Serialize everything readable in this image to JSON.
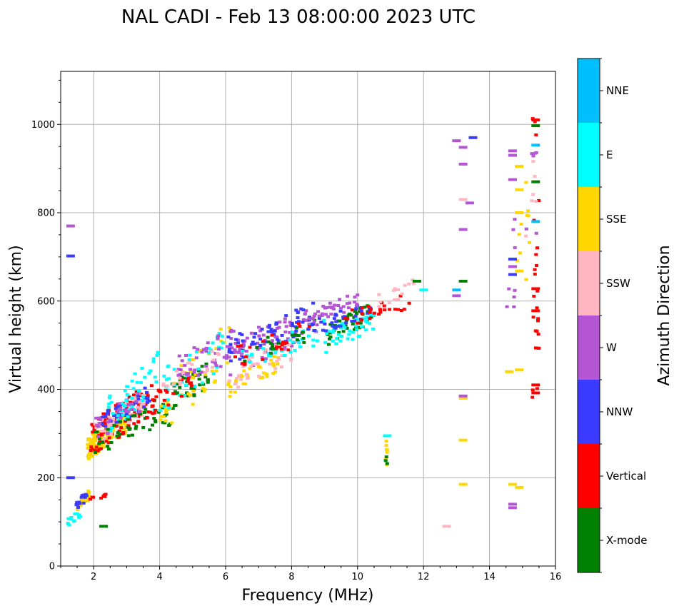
{
  "chart_data": {
    "type": "scatter",
    "title": "NAL CADI - Feb 13 08:00:00 2023 UTC",
    "xlabel": "Frequency (MHz)",
    "ylabel": "Virtual height (km)",
    "xlim": [
      1.0,
      16.0
    ],
    "ylim": [
      0,
      1120
    ],
    "xticks": [
      2,
      4,
      6,
      8,
      10,
      12,
      14,
      16
    ],
    "yticks": [
      0,
      200,
      400,
      600,
      800,
      1000
    ],
    "grid": true,
    "colorbar": {
      "label": "Azimuth Direction",
      "categories": [
        {
          "name": "X-mode",
          "color": "#008000"
        },
        {
          "name": "Vertical",
          "color": "#ff0000"
        },
        {
          "name": "NNW",
          "color": "#3b3bff"
        },
        {
          "name": "W",
          "color": "#b455d4"
        },
        {
          "name": "SSW",
          "color": "#ffb6c1"
        },
        {
          "name": "SSE",
          "color": "#ffd700"
        },
        {
          "name": "E",
          "color": "#00ffff"
        },
        {
          "name": "NNE",
          "color": "#00bfff"
        }
      ]
    },
    "clusters": [
      {
        "cat": "SSE",
        "f": [
          1.5,
          1.9
        ],
        "h": [
          125,
          175
        ],
        "n": 30,
        "seed": 11
      },
      {
        "cat": "NNW",
        "f": [
          1.4,
          1.8
        ],
        "h": [
          120,
          170
        ],
        "n": 16,
        "seed": 12
      },
      {
        "cat": "E",
        "f": [
          1.2,
          1.6
        ],
        "h": [
          88,
          130
        ],
        "n": 14,
        "seed": 13
      },
      {
        "cat": "Vertical",
        "f": [
          1.7,
          2.4
        ],
        "h": [
          145,
          165
        ],
        "n": 8,
        "seed": 14
      },
      {
        "cat": "SSE",
        "f": [
          1.8,
          3.0
        ],
        "h": [
          240,
          350
        ],
        "n": 110,
        "seed": 21
      },
      {
        "cat": "Vertical",
        "f": [
          1.9,
          3.8
        ],
        "h": [
          248,
          420
        ],
        "n": 110,
        "seed": 22
      },
      {
        "cat": "SSW",
        "f": [
          2.0,
          3.6
        ],
        "h": [
          270,
          400
        ],
        "n": 60,
        "seed": 23
      },
      {
        "cat": "NNW",
        "f": [
          2.2,
          3.7
        ],
        "h": [
          300,
          410
        ],
        "n": 40,
        "seed": 24
      },
      {
        "cat": "E",
        "f": [
          2.4,
          4.0
        ],
        "h": [
          290,
          490
        ],
        "n": 45,
        "seed": 25
      },
      {
        "cat": "X-mode",
        "f": [
          2.0,
          4.4
        ],
        "h": [
          250,
          380
        ],
        "n": 40,
        "seed": 26
      },
      {
        "cat": "W",
        "f": [
          2.0,
          3.5
        ],
        "h": [
          280,
          400
        ],
        "n": 25,
        "seed": 27
      },
      {
        "cat": "X-mode",
        "f": [
          3.8,
          5.5
        ],
        "h": [
          320,
          470
        ],
        "n": 45,
        "seed": 31
      },
      {
        "cat": "SSE",
        "f": [
          4.0,
          6.2
        ],
        "h": [
          300,
          560
        ],
        "n": 50,
        "seed": 32
      },
      {
        "cat": "E",
        "f": [
          3.8,
          6.0
        ],
        "h": [
          320,
          560
        ],
        "n": 40,
        "seed": 33
      },
      {
        "cat": "W",
        "f": [
          4.5,
          6.5
        ],
        "h": [
          400,
          560
        ],
        "n": 50,
        "seed": 34
      },
      {
        "cat": "Vertical",
        "f": [
          3.6,
          5.0
        ],
        "h": [
          330,
          450
        ],
        "n": 25,
        "seed": 35
      },
      {
        "cat": "SSW",
        "f": [
          4.0,
          5.8
        ],
        "h": [
          380,
          500
        ],
        "n": 20,
        "seed": 36
      },
      {
        "cat": "W",
        "f": [
          5.8,
          8.8
        ],
        "h": [
          420,
          600
        ],
        "n": 80,
        "seed": 41
      },
      {
        "cat": "NNW",
        "f": [
          6.0,
          8.8
        ],
        "h": [
          450,
          600
        ],
        "n": 60,
        "seed": 42
      },
      {
        "cat": "SSE",
        "f": [
          6.0,
          7.6
        ],
        "h": [
          380,
          480
        ],
        "n": 35,
        "seed": 43
      },
      {
        "cat": "SSW",
        "f": [
          6.0,
          8.0
        ],
        "h": [
          390,
          520
        ],
        "n": 35,
        "seed": 44
      },
      {
        "cat": "E",
        "f": [
          6.5,
          9.0
        ],
        "h": [
          440,
          560
        ],
        "n": 35,
        "seed": 45
      },
      {
        "cat": "Vertical",
        "f": [
          6.2,
          8.6
        ],
        "h": [
          440,
          560
        ],
        "n": 25,
        "seed": 46
      },
      {
        "cat": "X-mode",
        "f": [
          6.5,
          8.7
        ],
        "h": [
          450,
          560
        ],
        "n": 20,
        "seed": 47
      },
      {
        "cat": "X-mode",
        "f": [
          9.0,
          10.5
        ],
        "h": [
          495,
          600
        ],
        "n": 50,
        "seed": 51
      },
      {
        "cat": "E",
        "f": [
          9.0,
          10.6
        ],
        "h": [
          480,
          590
        ],
        "n": 45,
        "seed": 52
      },
      {
        "cat": "NNW",
        "f": [
          8.6,
          10.4
        ],
        "h": [
          520,
          600
        ],
        "n": 35,
        "seed": 53
      },
      {
        "cat": "W",
        "f": [
          8.4,
          10.0
        ],
        "h": [
          540,
          620
        ],
        "n": 35,
        "seed": 54
      },
      {
        "cat": "Vertical",
        "f": [
          9.6,
          11.6
        ],
        "h": [
          540,
          620
        ],
        "n": 25,
        "seed": 55
      },
      {
        "cat": "SSW",
        "f": [
          10.5,
          11.7
        ],
        "h": [
          580,
          650
        ],
        "n": 15,
        "seed": 56
      },
      {
        "cat": "SSE",
        "f": [
          10.85,
          10.9
        ],
        "h": [
          225,
          285
        ],
        "n": 7,
        "seed": 61
      },
      {
        "cat": "X-mode",
        "f": [
          10.85,
          10.9
        ],
        "h": [
          228,
          250
        ],
        "n": 3,
        "seed": 62
      },
      {
        "cat": "Vertical",
        "f": [
          15.3,
          15.5
        ],
        "h": [
          380,
          1015
        ],
        "n": 26,
        "seed": 71
      },
      {
        "cat": "W",
        "f": [
          14.5,
          15.5
        ],
        "h": [
          460,
          1010
        ],
        "n": 14,
        "seed": 72
      },
      {
        "cat": "SSE",
        "f": [
          14.7,
          15.3
        ],
        "h": [
          440,
          960
        ],
        "n": 10,
        "seed": 73
      },
      {
        "cat": "SSW",
        "f": [
          15.0,
          15.5
        ],
        "h": [
          640,
          1015
        ],
        "n": 6,
        "seed": 74
      }
    ],
    "points": [
      {
        "cat": "W",
        "f": 1.3,
        "h": 770
      },
      {
        "cat": "NNW",
        "f": 1.3,
        "h": 702
      },
      {
        "cat": "NNW",
        "f": 1.3,
        "h": 200
      },
      {
        "cat": "X-mode",
        "f": 2.3,
        "h": 90
      },
      {
        "cat": "SSW",
        "f": 12.7,
        "h": 90
      },
      {
        "cat": "SSE",
        "f": 13.2,
        "h": 185
      },
      {
        "cat": "SSE",
        "f": 13.2,
        "h": 285
      },
      {
        "cat": "SSE",
        "f": 13.2,
        "h": 380
      },
      {
        "cat": "W",
        "f": 13.2,
        "h": 385
      },
      {
        "cat": "X-mode",
        "f": 13.2,
        "h": 645
      },
      {
        "cat": "W",
        "f": 13.0,
        "h": 612
      },
      {
        "cat": "NNE",
        "f": 13.0,
        "h": 625
      },
      {
        "cat": "W",
        "f": 13.2,
        "h": 762
      },
      {
        "cat": "W",
        "f": 13.4,
        "h": 822
      },
      {
        "cat": "SSW",
        "f": 13.2,
        "h": 830
      },
      {
        "cat": "W",
        "f": 13.2,
        "h": 910
      },
      {
        "cat": "W",
        "f": 13.2,
        "h": 948
      },
      {
        "cat": "W",
        "f": 13.0,
        "h": 963
      },
      {
        "cat": "NNW",
        "f": 13.5,
        "h": 970
      },
      {
        "cat": "SSE",
        "f": 14.7,
        "h": 185
      },
      {
        "cat": "SSE",
        "f": 14.9,
        "h": 178
      },
      {
        "cat": "W",
        "f": 14.7,
        "h": 140
      },
      {
        "cat": "W",
        "f": 14.7,
        "h": 132
      },
      {
        "cat": "NNW",
        "f": 14.7,
        "h": 695
      },
      {
        "cat": "NNW",
        "f": 14.7,
        "h": 660
      },
      {
        "cat": "W",
        "f": 14.7,
        "h": 678
      },
      {
        "cat": "W",
        "f": 14.7,
        "h": 875
      },
      {
        "cat": "W",
        "f": 14.7,
        "h": 940
      },
      {
        "cat": "W",
        "f": 14.7,
        "h": 930
      },
      {
        "cat": "NNE",
        "f": 15.4,
        "h": 780
      },
      {
        "cat": "NNE",
        "f": 15.4,
        "h": 953
      },
      {
        "cat": "X-mode",
        "f": 15.4,
        "h": 870
      },
      {
        "cat": "X-mode",
        "f": 15.4,
        "h": 997
      },
      {
        "cat": "Vertical",
        "f": 15.4,
        "h": 1010
      },
      {
        "cat": "Vertical",
        "f": 15.4,
        "h": 628
      },
      {
        "cat": "Vertical",
        "f": 15.4,
        "h": 578
      },
      {
        "cat": "Vertical",
        "f": 15.4,
        "h": 392
      },
      {
        "cat": "Vertical",
        "f": 15.4,
        "h": 410
      },
      {
        "cat": "SSE",
        "f": 14.9,
        "h": 668
      },
      {
        "cat": "SSE",
        "f": 14.9,
        "h": 800
      },
      {
        "cat": "SSE",
        "f": 14.9,
        "h": 852
      },
      {
        "cat": "SSE",
        "f": 14.9,
        "h": 905
      },
      {
        "cat": "SSE",
        "f": 14.9,
        "h": 444
      },
      {
        "cat": "SSE",
        "f": 14.6,
        "h": 440
      },
      {
        "cat": "E",
        "f": 12.0,
        "h": 625
      },
      {
        "cat": "E",
        "f": 10.9,
        "h": 295
      },
      {
        "cat": "X-mode",
        "f": 11.8,
        "h": 645
      }
    ]
  }
}
